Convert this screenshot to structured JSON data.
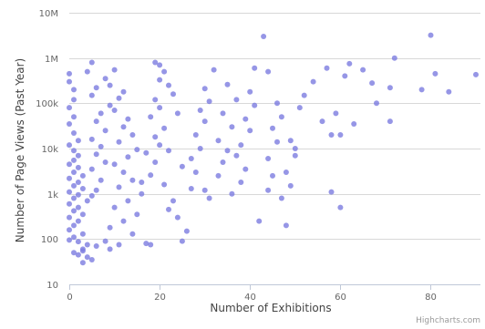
{
  "chart_data": {
    "type": "scatter",
    "title": "",
    "xlabel": "Number of Exhibitions",
    "ylabel": "Number of Page Views (Past Year)",
    "xlim": [
      0,
      91
    ],
    "ylim": [
      10,
      10000000
    ],
    "y_scale": "log",
    "x_ticks": [
      0,
      20,
      40,
      60,
      80
    ],
    "x_tick_labels": [
      "0",
      "20",
      "40",
      "60",
      "80"
    ],
    "y_ticks": [
      10,
      100,
      1000,
      10000,
      100000,
      1000000,
      10000000
    ],
    "y_tick_labels": [
      "10",
      "100",
      "1k",
      "10k",
      "100k",
      "1M",
      "10M"
    ],
    "grid": {
      "horizontal": true,
      "vertical": false
    },
    "legend": "none",
    "marker_color": "#7c7ce0",
    "credits": "Highcharts.com",
    "series": [
      {
        "points": [
          [
            0,
            450000
          ],
          [
            0,
            300000
          ],
          [
            1,
            200000
          ],
          [
            1,
            120000
          ],
          [
            0,
            80000
          ],
          [
            1,
            50000
          ],
          [
            0,
            35000
          ],
          [
            1,
            22000
          ],
          [
            2,
            15000
          ],
          [
            0,
            12000
          ],
          [
            1,
            9000
          ],
          [
            2,
            7000
          ],
          [
            1,
            5500
          ],
          [
            0,
            4500
          ],
          [
            2,
            3800
          ],
          [
            1,
            3000
          ],
          [
            3,
            2500
          ],
          [
            0,
            2200
          ],
          [
            2,
            1800
          ],
          [
            1,
            1500
          ],
          [
            3,
            1300
          ],
          [
            0,
            1100
          ],
          [
            2,
            950
          ],
          [
            1,
            800
          ],
          [
            4,
            700
          ],
          [
            0,
            600
          ],
          [
            2,
            500
          ],
          [
            1,
            420
          ],
          [
            3,
            350
          ],
          [
            0,
            300
          ],
          [
            2,
            250
          ],
          [
            1,
            200
          ],
          [
            0,
            160
          ],
          [
            3,
            130
          ],
          [
            1,
            110
          ],
          [
            0,
            95
          ],
          [
            2,
            88
          ],
          [
            4,
            75
          ],
          [
            3,
            60
          ],
          [
            1,
            50
          ],
          [
            5,
            900
          ],
          [
            6,
            1200
          ],
          [
            7,
            2000
          ],
          [
            5,
            3500
          ],
          [
            8,
            5000
          ],
          [
            6,
            7500
          ],
          [
            7,
            11000
          ],
          [
            5,
            16000
          ],
          [
            8,
            25000
          ],
          [
            6,
            40000
          ],
          [
            7,
            60000
          ],
          [
            9,
            90000
          ],
          [
            5,
            150000
          ],
          [
            6,
            220000
          ],
          [
            8,
            350000
          ],
          [
            4,
            500000
          ],
          [
            5,
            800000
          ],
          [
            10,
            550000
          ],
          [
            9,
            250000
          ],
          [
            12,
            180000
          ],
          [
            11,
            130000
          ],
          [
            10,
            70000
          ],
          [
            13,
            45000
          ],
          [
            12,
            30000
          ],
          [
            14,
            20000
          ],
          [
            11,
            14000
          ],
          [
            15,
            9500
          ],
          [
            13,
            6500
          ],
          [
            10,
            4500
          ],
          [
            12,
            3000
          ],
          [
            14,
            2000
          ],
          [
            11,
            1400
          ],
          [
            16,
            1000
          ],
          [
            13,
            700
          ],
          [
            10,
            500
          ],
          [
            15,
            350
          ],
          [
            12,
            250
          ],
          [
            9,
            180
          ],
          [
            14,
            130
          ],
          [
            8,
            90
          ],
          [
            6,
            70
          ],
          [
            3,
            55
          ],
          [
            2,
            45
          ],
          [
            4,
            40
          ],
          [
            5,
            35
          ],
          [
            3,
            30
          ],
          [
            9,
            60
          ],
          [
            11,
            75
          ],
          [
            17,
            80
          ],
          [
            18,
            75
          ],
          [
            16,
            1800
          ],
          [
            18,
            2600
          ],
          [
            19,
            5000
          ],
          [
            17,
            8000
          ],
          [
            20,
            12000
          ],
          [
            19,
            18000
          ],
          [
            21,
            28000
          ],
          [
            18,
            50000
          ],
          [
            20,
            80000
          ],
          [
            19,
            120000
          ],
          [
            19,
            800000
          ],
          [
            20,
            700000
          ],
          [
            21,
            500000
          ],
          [
            20,
            330000
          ],
          [
            22,
            250000
          ],
          [
            23,
            160000
          ],
          [
            24,
            60000
          ],
          [
            22,
            9000
          ],
          [
            25,
            4000
          ],
          [
            21,
            1600
          ],
          [
            23,
            700
          ],
          [
            22,
            450
          ],
          [
            24,
            300
          ],
          [
            26,
            150
          ],
          [
            25,
            90
          ],
          [
            27,
            1300
          ],
          [
            28,
            3000
          ],
          [
            27,
            6000
          ],
          [
            29,
            10000
          ],
          [
            28,
            20000
          ],
          [
            30,
            40000
          ],
          [
            29,
            70000
          ],
          [
            31,
            110000
          ],
          [
            30,
            210000
          ],
          [
            32,
            550000
          ],
          [
            30,
            1200
          ],
          [
            31,
            800
          ],
          [
            33,
            2500
          ],
          [
            34,
            5000
          ],
          [
            35,
            9000
          ],
          [
            33,
            15000
          ],
          [
            36,
            30000
          ],
          [
            34,
            60000
          ],
          [
            37,
            120000
          ],
          [
            35,
            260000
          ],
          [
            36,
            1000
          ],
          [
            38,
            1800
          ],
          [
            39,
            3500
          ],
          [
            37,
            7000
          ],
          [
            38,
            12000
          ],
          [
            40,
            25000
          ],
          [
            39,
            45000
          ],
          [
            41,
            90000
          ],
          [
            40,
            180000
          ],
          [
            41,
            600000
          ],
          [
            43,
            3000000
          ],
          [
            44,
            500000
          ],
          [
            42,
            250
          ],
          [
            44,
            1200
          ],
          [
            45,
            2500
          ],
          [
            44,
            6000
          ],
          [
            46,
            14000
          ],
          [
            45,
            28000
          ],
          [
            47,
            50000
          ],
          [
            46,
            100000
          ],
          [
            48,
            200
          ],
          [
            47,
            800
          ],
          [
            49,
            1500
          ],
          [
            48,
            3000
          ],
          [
            50,
            7000
          ],
          [
            49,
            15000
          ],
          [
            50,
            10000
          ],
          [
            51,
            80000
          ],
          [
            52,
            150000
          ],
          [
            54,
            300000
          ],
          [
            56,
            40000
          ],
          [
            57,
            600000
          ],
          [
            58,
            1100
          ],
          [
            58,
            20000
          ],
          [
            59,
            60000
          ],
          [
            60,
            500
          ],
          [
            60,
            20000
          ],
          [
            61,
            400000
          ],
          [
            62,
            750000
          ],
          [
            63,
            35000
          ],
          [
            65,
            550000
          ],
          [
            67,
            280000
          ],
          [
            68,
            100000
          ],
          [
            71,
            220000
          ],
          [
            71,
            40000
          ],
          [
            72,
            1000000
          ],
          [
            78,
            200000
          ],
          [
            80,
            3200000
          ],
          [
            81,
            450000
          ],
          [
            84,
            180000
          ],
          [
            90,
            430000
          ]
        ]
      }
    ]
  }
}
